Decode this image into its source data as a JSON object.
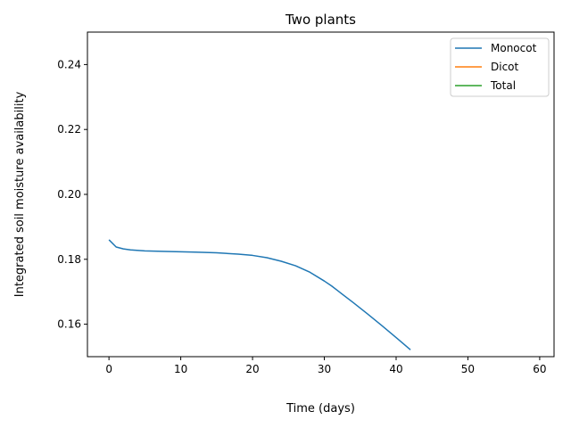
{
  "chart_data": {
    "type": "line",
    "title": "Two plants",
    "xlabel": "Time (days)",
    "ylabel": "Integrated soil moisture availability",
    "xlim": [
      -3,
      62
    ],
    "ylim": [
      0.15,
      0.25
    ],
    "xticks": [
      0,
      10,
      20,
      30,
      40,
      50,
      60
    ],
    "yticks": [
      0.16,
      0.18,
      0.2,
      0.22,
      0.24
    ],
    "ytick_labels": [
      "0.16",
      "0.18",
      "0.20",
      "0.22",
      "0.24"
    ],
    "legend_position": "top-right",
    "series": [
      {
        "name": "Monocot",
        "color": "#1f77b4",
        "x": [
          0,
          1,
          2,
          3,
          5,
          8,
          10,
          12,
          15,
          18,
          20,
          22,
          24,
          26,
          28,
          30,
          31,
          32,
          34,
          36,
          38,
          40,
          42
        ],
        "y": [
          0.186,
          0.1838,
          0.1832,
          0.1829,
          0.1826,
          0.1824,
          0.1823,
          0.1822,
          0.182,
          0.1816,
          0.1812,
          0.1805,
          0.1794,
          0.178,
          0.176,
          0.1733,
          0.1718,
          0.1701,
          0.1667,
          0.1632,
          0.1596,
          0.1559,
          0.1521
        ]
      },
      {
        "name": "Dicot",
        "color": "#ff7f0e",
        "x": [],
        "y": []
      },
      {
        "name": "Total",
        "color": "#2ca02c",
        "x": [],
        "y": []
      }
    ]
  }
}
